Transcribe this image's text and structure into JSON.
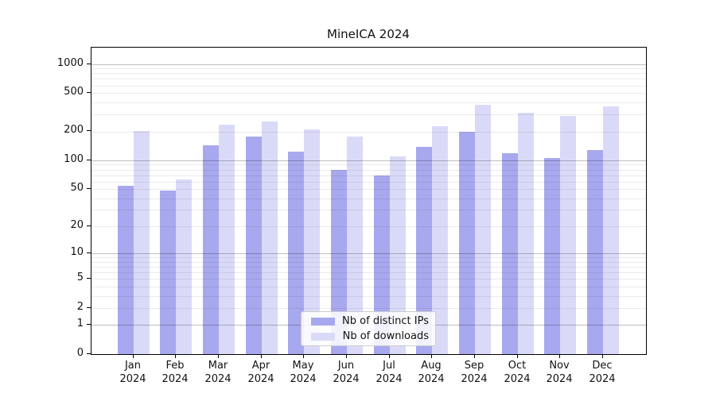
{
  "title": "MineICA 2024",
  "legend": {
    "items": [
      {
        "label": "Nb of distinct IPs",
        "color": "#a8a8ee"
      },
      {
        "label": "Nb of downloads",
        "color": "#dadaf8"
      }
    ]
  },
  "chart_data": {
    "type": "bar",
    "title": "MineICA 2024",
    "categories": [
      "Jan 2024",
      "Feb 2024",
      "Mar 2024",
      "Apr 2024",
      "May 2024",
      "Jun 2024",
      "Jul 2024",
      "Aug 2024",
      "Sep 2024",
      "Oct 2024",
      "Nov 2024",
      "Dec 2024"
    ],
    "series": [
      {
        "name": "Nb of distinct IPs",
        "color": "#a8a8ee",
        "values": [
          54,
          48,
          142,
          175,
          123,
          79,
          69,
          137,
          197,
          118,
          106,
          128
        ]
      },
      {
        "name": "Nb of downloads",
        "color": "#dadaf8",
        "values": [
          202,
          63,
          235,
          252,
          210,
          175,
          110,
          226,
          377,
          314,
          289,
          361
        ]
      }
    ],
    "xlabel": "",
    "ylabel": "",
    "yscale": "log1p",
    "ylim": [
      0,
      1475
    ],
    "yticks": [
      1000,
      500,
      200,
      100,
      50,
      20,
      10,
      5,
      2,
      1,
      0
    ],
    "grid": "horizontal minor lines plus darker major lines at 1, 10, 100, 1000",
    "legend_position": "lower center"
  },
  "colors": {
    "major_grid": "rgba(0,0,0,0.25)",
    "minor_grid": "rgba(0,0,0,0.08)",
    "spine": "#000000",
    "text": "#111111",
    "legend_border": "#cccccc",
    "legend_bg": "rgba(255,255,255,0.85)"
  }
}
